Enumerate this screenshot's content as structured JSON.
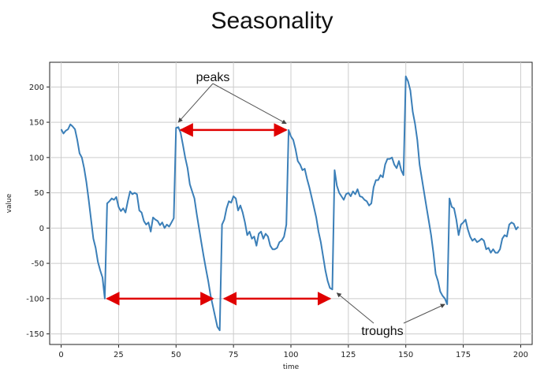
{
  "slide": {
    "title": "Seasonality"
  },
  "chart_data": {
    "type": "line",
    "title": "",
    "xlabel": "time",
    "ylabel": "value",
    "xlim": [
      -5,
      205
    ],
    "ylim": [
      -165,
      235
    ],
    "xticks": [
      0,
      25,
      50,
      75,
      100,
      125,
      150,
      175,
      200
    ],
    "yticks": [
      -150,
      -100,
      -50,
      0,
      50,
      100,
      150,
      200
    ],
    "grid": true,
    "colors": {
      "series": "#3b7fb8",
      "arrow": "#e00000",
      "pointer": "#555555"
    },
    "series": [
      {
        "values": [
          [
            0,
            140
          ],
          [
            1,
            134
          ],
          [
            2,
            138
          ],
          [
            3,
            140
          ],
          [
            4,
            147
          ],
          [
            5,
            144
          ],
          [
            6,
            140
          ],
          [
            7,
            125
          ],
          [
            8,
            106
          ],
          [
            9,
            100
          ],
          [
            10,
            85
          ],
          [
            11,
            65
          ],
          [
            12,
            40
          ],
          [
            13,
            12
          ],
          [
            14,
            -15
          ],
          [
            15,
            -28
          ],
          [
            16,
            -48
          ],
          [
            17,
            -60
          ],
          [
            18,
            -70
          ],
          [
            19,
            -100
          ],
          [
            20,
            35
          ],
          [
            21,
            38
          ],
          [
            22,
            42
          ],
          [
            23,
            40
          ],
          [
            24,
            44
          ],
          [
            25,
            30
          ],
          [
            26,
            24
          ],
          [
            27,
            28
          ],
          [
            28,
            22
          ],
          [
            29,
            38
          ],
          [
            30,
            52
          ],
          [
            31,
            48
          ],
          [
            32,
            50
          ],
          [
            33,
            48
          ],
          [
            34,
            25
          ],
          [
            35,
            22
          ],
          [
            36,
            10
          ],
          [
            37,
            5
          ],
          [
            38,
            8
          ],
          [
            39,
            -5
          ],
          [
            40,
            15
          ],
          [
            41,
            12
          ],
          [
            42,
            10
          ],
          [
            43,
            4
          ],
          [
            44,
            8
          ],
          [
            45,
            0
          ],
          [
            46,
            5
          ],
          [
            47,
            2
          ],
          [
            48,
            8
          ],
          [
            49,
            14
          ],
          [
            50,
            142
          ],
          [
            51,
            143
          ],
          [
            52,
            135
          ],
          [
            53,
            118
          ],
          [
            54,
            100
          ],
          [
            55,
            85
          ],
          [
            56,
            62
          ],
          [
            57,
            52
          ],
          [
            58,
            42
          ],
          [
            59,
            20
          ],
          [
            60,
            0
          ],
          [
            61,
            -20
          ],
          [
            62,
            -40
          ],
          [
            63,
            -58
          ],
          [
            64,
            -75
          ],
          [
            65,
            -95
          ],
          [
            66,
            -110
          ],
          [
            67,
            -125
          ],
          [
            68,
            -140
          ],
          [
            69,
            -145
          ],
          [
            70,
            5
          ],
          [
            71,
            12
          ],
          [
            72,
            28
          ],
          [
            73,
            38
          ],
          [
            74,
            36
          ],
          [
            75,
            45
          ],
          [
            76,
            42
          ],
          [
            77,
            25
          ],
          [
            78,
            32
          ],
          [
            79,
            22
          ],
          [
            80,
            8
          ],
          [
            81,
            -10
          ],
          [
            82,
            -5
          ],
          [
            83,
            -15
          ],
          [
            84,
            -12
          ],
          [
            85,
            -25
          ],
          [
            86,
            -8
          ],
          [
            87,
            -5
          ],
          [
            88,
            -15
          ],
          [
            89,
            -8
          ],
          [
            90,
            -12
          ],
          [
            91,
            -25
          ],
          [
            92,
            -30
          ],
          [
            93,
            -30
          ],
          [
            94,
            -28
          ],
          [
            95,
            -20
          ],
          [
            96,
            -18
          ],
          [
            97,
            -12
          ],
          [
            98,
            5
          ],
          [
            99,
            139
          ],
          [
            100,
            130
          ],
          [
            101,
            125
          ],
          [
            102,
            112
          ],
          [
            103,
            95
          ],
          [
            104,
            90
          ],
          [
            105,
            82
          ],
          [
            106,
            84
          ],
          [
            107,
            70
          ],
          [
            108,
            58
          ],
          [
            109,
            44
          ],
          [
            110,
            30
          ],
          [
            111,
            15
          ],
          [
            112,
            -5
          ],
          [
            113,
            -20
          ],
          [
            114,
            -40
          ],
          [
            115,
            -60
          ],
          [
            116,
            -75
          ],
          [
            117,
            -85
          ],
          [
            118,
            -87
          ],
          [
            119,
            82
          ],
          [
            120,
            60
          ],
          [
            121,
            50
          ],
          [
            122,
            45
          ],
          [
            123,
            40
          ],
          [
            124,
            48
          ],
          [
            125,
            50
          ],
          [
            126,
            45
          ],
          [
            127,
            52
          ],
          [
            128,
            48
          ],
          [
            129,
            55
          ],
          [
            130,
            45
          ],
          [
            131,
            44
          ],
          [
            132,
            40
          ],
          [
            133,
            38
          ],
          [
            134,
            32
          ],
          [
            135,
            35
          ],
          [
            136,
            58
          ],
          [
            137,
            68
          ],
          [
            138,
            68
          ],
          [
            139,
            75
          ],
          [
            140,
            72
          ],
          [
            141,
            90
          ],
          [
            142,
            98
          ],
          [
            143,
            98
          ],
          [
            144,
            100
          ],
          [
            145,
            90
          ],
          [
            146,
            85
          ],
          [
            147,
            95
          ],
          [
            148,
            82
          ],
          [
            149,
            75
          ],
          [
            150,
            215
          ],
          [
            151,
            208
          ],
          [
            152,
            195
          ],
          [
            153,
            165
          ],
          [
            154,
            148
          ],
          [
            155,
            125
          ],
          [
            156,
            90
          ],
          [
            157,
            70
          ],
          [
            158,
            50
          ],
          [
            159,
            30
          ],
          [
            160,
            10
          ],
          [
            161,
            -10
          ],
          [
            162,
            -35
          ],
          [
            163,
            -65
          ],
          [
            164,
            -75
          ],
          [
            165,
            -90
          ],
          [
            166,
            -96
          ],
          [
            167,
            -100
          ],
          [
            168,
            -108
          ],
          [
            169,
            42
          ],
          [
            170,
            30
          ],
          [
            171,
            28
          ],
          [
            172,
            12
          ],
          [
            173,
            -10
          ],
          [
            174,
            5
          ],
          [
            175,
            8
          ],
          [
            176,
            12
          ],
          [
            177,
            -2
          ],
          [
            178,
            -12
          ],
          [
            179,
            -18
          ],
          [
            180,
            -15
          ],
          [
            181,
            -20
          ],
          [
            182,
            -18
          ],
          [
            183,
            -15
          ],
          [
            184,
            -18
          ],
          [
            185,
            -30
          ],
          [
            186,
            -28
          ],
          [
            187,
            -35
          ],
          [
            188,
            -30
          ],
          [
            189,
            -35
          ],
          [
            190,
            -35
          ],
          [
            191,
            -30
          ],
          [
            192,
            -15
          ],
          [
            193,
            -10
          ],
          [
            194,
            -12
          ],
          [
            195,
            5
          ],
          [
            196,
            8
          ],
          [
            197,
            6
          ],
          [
            198,
            -2
          ],
          [
            199,
            2
          ]
        ]
      }
    ],
    "annotations": {
      "peaks_label": "peaks",
      "troughs_label": "troughs",
      "peak_pointer_targets": [
        [
          51,
          150
        ],
        [
          98,
          148
        ]
      ],
      "trough_pointer_targets": [
        [
          120,
          -92
        ],
        [
          167,
          -108
        ]
      ],
      "peak_interval_arrow": {
        "from": [
          52,
          139
        ],
        "to": [
          98,
          139
        ]
      },
      "trough_interval_arrows": [
        {
          "from": [
            20,
            -100
          ],
          "to": [
            66,
            -100
          ]
        },
        {
          "from": [
            71,
            -100
          ],
          "to": [
            117,
            -100
          ]
        }
      ]
    }
  }
}
